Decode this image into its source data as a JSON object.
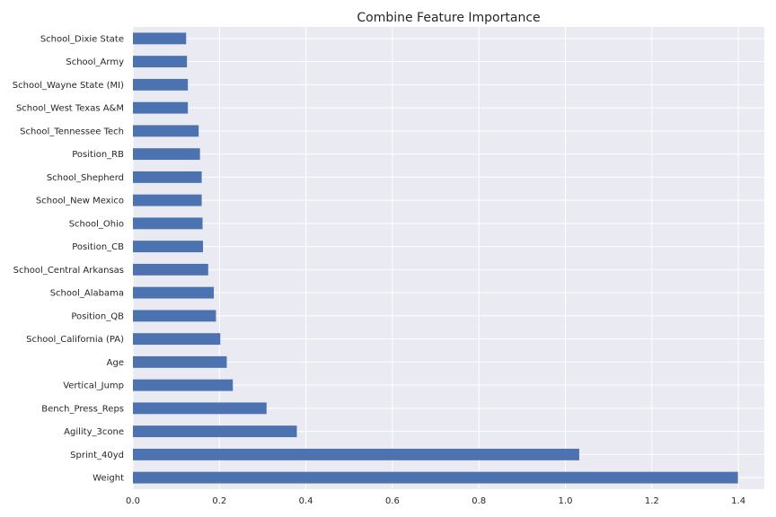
{
  "chart_data": {
    "type": "bar",
    "orientation": "horizontal",
    "title": "Combine Feature Importance",
    "xlabel": "",
    "ylabel": "",
    "xlim": [
      0,
      1.46
    ],
    "xticks": [
      "0.0",
      "0.2",
      "0.4",
      "0.6",
      "0.8",
      "1.0",
      "1.2",
      "1.4"
    ],
    "grid": true,
    "legend": "none",
    "colors": {
      "bar": "#4c72b0",
      "background": "#eaeaf2",
      "grid": "#ffffff",
      "text": "#262626"
    },
    "categories": [
      "School_Dixie State",
      "School_Army",
      "School_Wayne State (MI)",
      "School_West Texas A&M",
      "School_Tennessee Tech",
      "Position_RB",
      "School_Shepherd",
      "School_New Mexico",
      "School_Ohio",
      "Position_CB",
      "School_Central Arkansas",
      "School_Alabama",
      "Position_QB",
      "School_California (PA)",
      "Age",
      "Vertical_Jump",
      "Bench_Press_Reps",
      "Agility_3cone",
      "Sprint_40yd",
      "Weight"
    ],
    "values": [
      0.123,
      0.125,
      0.127,
      0.127,
      0.152,
      0.155,
      0.159,
      0.159,
      0.161,
      0.162,
      0.174,
      0.187,
      0.192,
      0.202,
      0.217,
      0.231,
      0.309,
      0.379,
      1.032,
      1.399
    ]
  }
}
